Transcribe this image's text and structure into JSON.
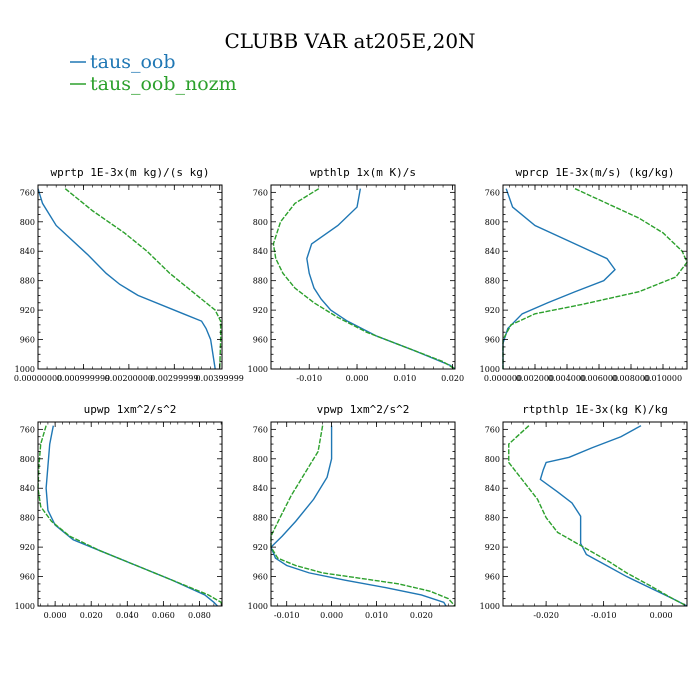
{
  "figure": {
    "title": "CLUBB VAR at205E,20N",
    "legend": [
      {
        "name": "taus_oob",
        "color": "#1f77b4"
      },
      {
        "name": "taus_oob_nozm",
        "color": "#2ca02c"
      }
    ]
  },
  "chart_data": [
    {
      "type": "line",
      "title": "wprtp  1E-3x(m kg)/(s kg)",
      "ylim": [
        1000,
        750
      ],
      "yticks": [
        760,
        800,
        840,
        880,
        920,
        960,
        1000
      ],
      "xlim": [
        0,
        0.00405
      ],
      "xticks": [
        0,
        0.001,
        0.002,
        0.003,
        0.004
      ],
      "xtick_labels": [
        "0.00000000",
        "0.000999999",
        "0.00200000",
        "0.00299999",
        "0.00399999"
      ],
      "series": [
        {
          "name": "taus_oob",
          "color": "#1f77b4",
          "dash": false,
          "points": [
            [
              0,
              755
            ],
            [
              0.0001,
              775
            ],
            [
              0.0004,
              805
            ],
            [
              0.0011,
              845
            ],
            [
              0.0015,
              870
            ],
            [
              0.0018,
              885
            ],
            [
              0.0022,
              900
            ],
            [
              0.0032,
              925
            ],
            [
              0.0036,
              935
            ],
            [
              0.0037,
              945
            ],
            [
              0.0038,
              960
            ],
            [
              0.0039,
              1000
            ]
          ]
        },
        {
          "name": "taus_oob_nozm",
          "color": "#2ca02c",
          "dash": true,
          "points": [
            [
              0.0006,
              755
            ],
            [
              0.0012,
              785
            ],
            [
              0.0019,
              815
            ],
            [
              0.0024,
              840
            ],
            [
              0.0029,
              870
            ],
            [
              0.0034,
              895
            ],
            [
              0.0039,
              920
            ],
            [
              0.00402,
              935
            ],
            [
              0.00402,
              960
            ],
            [
              0.004,
              1000
            ]
          ]
        }
      ]
    },
    {
      "type": "line",
      "title": "wpthlp  1x(m K)/s",
      "ylim": [
        1000,
        750
      ],
      "yticks": [
        760,
        800,
        840,
        880,
        920,
        960,
        1000
      ],
      "xlim": [
        -0.018,
        0.0205
      ],
      "xticks": [
        -0.01,
        0,
        0.01,
        0.02
      ],
      "xtick_labels": [
        "-0.010",
        "0.000",
        "0.010",
        "0.020"
      ],
      "series": [
        {
          "name": "taus_oob",
          "color": "#1f77b4",
          "dash": false,
          "points": [
            [
              0.0007,
              755
            ],
            [
              0,
              780
            ],
            [
              -0.004,
              805
            ],
            [
              -0.0095,
              830
            ],
            [
              -0.0105,
              850
            ],
            [
              -0.01,
              870
            ],
            [
              -0.009,
              890
            ],
            [
              -0.0075,
              905
            ],
            [
              -0.0055,
              920
            ],
            [
              -0.002,
              935
            ],
            [
              0.004,
              955
            ],
            [
              0.012,
              975
            ],
            [
              0.0195,
              995
            ],
            [
              0.0205,
              1000
            ]
          ]
        },
        {
          "name": "taus_oob_nozm",
          "color": "#2ca02c",
          "dash": true,
          "points": [
            [
              -0.008,
              755
            ],
            [
              -0.013,
              775
            ],
            [
              -0.016,
              800
            ],
            [
              -0.0175,
              830
            ],
            [
              -0.017,
              850
            ],
            [
              -0.0155,
              870
            ],
            [
              -0.013,
              890
            ],
            [
              -0.009,
              910
            ],
            [
              -0.004,
              930
            ],
            [
              0.002,
              950
            ],
            [
              0.01,
              970
            ],
            [
              0.018,
              990
            ],
            [
              0.0205,
              1000
            ]
          ]
        }
      ]
    },
    {
      "type": "line",
      "title": "wprcp  1E-3x(m/s) (kg/kg)",
      "ylim": [
        1000,
        750
      ],
      "yticks": [
        760,
        800,
        840,
        880,
        920,
        960,
        1000
      ],
      "xlim": [
        0,
        0.0115
      ],
      "xticks": [
        0,
        0.002,
        0.004,
        0.006,
        0.008,
        0.01
      ],
      "xtick_labels": [
        "0.000000",
        "0.002000",
        "0.004000",
        "0.006000",
        "0.008000",
        "0.010000"
      ],
      "series": [
        {
          "name": "taus_oob",
          "color": "#1f77b4",
          "dash": false,
          "points": [
            [
              0.0002,
              755
            ],
            [
              0.0006,
              780
            ],
            [
              0.002,
              805
            ],
            [
              0.0045,
              830
            ],
            [
              0.0065,
              850
            ],
            [
              0.007,
              865
            ],
            [
              0.0063,
              880
            ],
            [
              0.0045,
              895
            ],
            [
              0.0028,
              910
            ],
            [
              0.0012,
              925
            ],
            [
              0.0003,
              945
            ],
            [
              0,
              965
            ],
            [
              0,
              1000
            ]
          ]
        },
        {
          "name": "taus_oob_nozm",
          "color": "#2ca02c",
          "dash": true,
          "points": [
            [
              0.0045,
              755
            ],
            [
              0.0065,
              775
            ],
            [
              0.0085,
              795
            ],
            [
              0.01,
              815
            ],
            [
              0.0112,
              840
            ],
            [
              0.0115,
              855
            ],
            [
              0.0108,
              875
            ],
            [
              0.0085,
              895
            ],
            [
              0.005,
              912
            ],
            [
              0.002,
              925
            ],
            [
              0.0005,
              940
            ],
            [
              0,
              960
            ],
            [
              0,
              1000
            ]
          ]
        }
      ]
    },
    {
      "type": "line",
      "title": "upwp  1xm^2/s^2",
      "ylim": [
        1000,
        750
      ],
      "yticks": [
        760,
        800,
        840,
        880,
        920,
        960,
        1000
      ],
      "xlim": [
        -0.0095,
        0.0925
      ],
      "xticks": [
        0,
        0.02,
        0.04,
        0.06,
        0.08
      ],
      "xtick_labels": [
        "0.000",
        "0.020",
        "0.040",
        "0.060",
        "0.080"
      ],
      "series": [
        {
          "name": "taus_oob",
          "color": "#1f77b4",
          "dash": false,
          "points": [
            [
              -0.001,
              755
            ],
            [
              -0.003,
              780
            ],
            [
              -0.004,
              810
            ],
            [
              -0.005,
              840
            ],
            [
              -0.004,
              870
            ],
            [
              0,
              890
            ],
            [
              0.01,
              910
            ],
            [
              0.025,
              925
            ],
            [
              0.045,
              945
            ],
            [
              0.065,
              965
            ],
            [
              0.083,
              985
            ],
            [
              0.088,
              995
            ],
            [
              0.09,
              1000
            ]
          ]
        },
        {
          "name": "taus_oob_nozm",
          "color": "#2ca02c",
          "dash": true,
          "points": [
            [
              -0.005,
              755
            ],
            [
              -0.008,
              780
            ],
            [
              -0.009,
              810
            ],
            [
              -0.0095,
              840
            ],
            [
              -0.008,
              865
            ],
            [
              -0.002,
              885
            ],
            [
              0.008,
              905
            ],
            [
              0.025,
              925
            ],
            [
              0.045,
              945
            ],
            [
              0.065,
              965
            ],
            [
              0.085,
              985
            ],
            [
              0.092,
              995
            ],
            [
              0.0925,
              1000
            ]
          ]
        }
      ]
    },
    {
      "type": "line",
      "title": "vpwp  1xm^2/s^2",
      "ylim": [
        1000,
        750
      ],
      "yticks": [
        760,
        800,
        840,
        880,
        920,
        960,
        1000
      ],
      "xlim": [
        -0.0135,
        0.0275
      ],
      "xticks": [
        -0.01,
        0,
        0.01,
        0.02
      ],
      "xtick_labels": [
        "-0.010",
        "0.000",
        "0.010",
        "0.020"
      ],
      "series": [
        {
          "name": "taus_oob",
          "color": "#1f77b4",
          "dash": false,
          "points": [
            [
              0,
              755
            ],
            [
              0,
              800
            ],
            [
              -0.001,
              825
            ],
            [
              -0.004,
              855
            ],
            [
              -0.008,
              885
            ],
            [
              -0.011,
              905
            ],
            [
              -0.0135,
              920
            ],
            [
              -0.0125,
              935
            ],
            [
              -0.01,
              945
            ],
            [
              -0.005,
              955
            ],
            [
              0.003,
              965
            ],
            [
              0.012,
              975
            ],
            [
              0.02,
              985
            ],
            [
              0.025,
              995
            ],
            [
              0.0255,
              1000
            ]
          ]
        },
        {
          "name": "taus_oob_nozm",
          "color": "#2ca02c",
          "dash": true,
          "points": [
            [
              -0.002,
              755
            ],
            [
              -0.003,
              790
            ],
            [
              -0.006,
              820
            ],
            [
              -0.009,
              850
            ],
            [
              -0.0115,
              880
            ],
            [
              -0.0135,
              905
            ],
            [
              -0.0135,
              920
            ],
            [
              -0.012,
              935
            ],
            [
              -0.008,
              945
            ],
            [
              -0.002,
              955
            ],
            [
              0.006,
              962
            ],
            [
              0.015,
              970
            ],
            [
              0.022,
              980
            ],
            [
              0.026,
              990
            ],
            [
              0.0275,
              1000
            ]
          ]
        }
      ]
    },
    {
      "type": "line",
      "title": "rtpthlp  1E-3x(kg K)/kg",
      "ylim": [
        1000,
        750
      ],
      "yticks": [
        760,
        800,
        840,
        880,
        920,
        960,
        1000
      ],
      "xlim": [
        -0.0275,
        0.0045
      ],
      "xticks": [
        -0.02,
        -0.01,
        0
      ],
      "xtick_labels": [
        "-0.020",
        "-0.010",
        "0.000"
      ],
      "series": [
        {
          "name": "taus_oob",
          "color": "#1f77b4",
          "dash": false,
          "points": [
            [
              -0.0035,
              755
            ],
            [
              -0.007,
              770
            ],
            [
              -0.012,
              785
            ],
            [
              -0.016,
              798
            ],
            [
              -0.02,
              805
            ],
            [
              -0.0205,
              815
            ],
            [
              -0.021,
              828
            ],
            [
              -0.018,
              845
            ],
            [
              -0.0155,
              860
            ],
            [
              -0.014,
              878
            ],
            [
              -0.014,
              900
            ],
            [
              -0.014,
              915
            ],
            [
              -0.013,
              930
            ],
            [
              -0.0095,
              945
            ],
            [
              -0.006,
              960
            ],
            [
              -0.002,
              975
            ],
            [
              0.002,
              990
            ],
            [
              0.0045,
              1000
            ]
          ]
        },
        {
          "name": "taus_oob_nozm",
          "color": "#2ca02c",
          "dash": true,
          "points": [
            [
              -0.023,
              755
            ],
            [
              -0.0265,
              780
            ],
            [
              -0.0265,
              805
            ],
            [
              -0.024,
              830
            ],
            [
              -0.0215,
              855
            ],
            [
              -0.02,
              880
            ],
            [
              -0.018,
              900
            ],
            [
              -0.0135,
              920
            ],
            [
              -0.009,
              940
            ],
            [
              -0.006,
              955
            ],
            [
              -0.002,
              972
            ],
            [
              0.002,
              990
            ],
            [
              0.0045,
              1000
            ]
          ]
        }
      ]
    }
  ]
}
